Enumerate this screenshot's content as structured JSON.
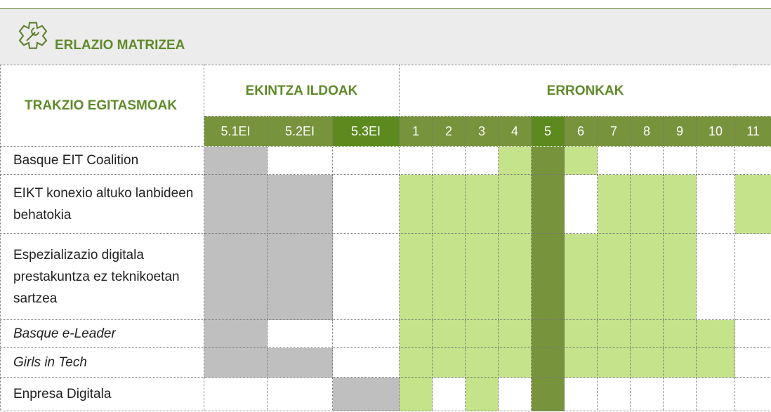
{
  "header": {
    "title": "ERLAZIO MATRIZEA"
  },
  "table": {
    "row_header": "TRAKZIO EGITASMOAK",
    "groups": [
      "EKINTZA ILDOAK",
      "ERRONKAK"
    ],
    "columns": [
      "5.1EI",
      "5.2EI",
      "5.3EI",
      "1",
      "2",
      "3",
      "4",
      "5",
      "6",
      "7",
      "8",
      "9",
      "10",
      "11"
    ],
    "highlight_columns": [
      "5.3EI",
      "5"
    ],
    "rows": [
      {
        "label": "Basque EIT Coalition",
        "italic": false,
        "cells": [
          "grey",
          "none",
          "none",
          "none",
          "none",
          "none",
          "light",
          "dark",
          "light",
          "none",
          "none",
          "none",
          "none",
          "none"
        ]
      },
      {
        "label": "EIKT konexio altuko lanbideen behatokia",
        "italic": false,
        "cells": [
          "grey",
          "grey",
          "none",
          "light",
          "light",
          "light",
          "light",
          "dark",
          "none",
          "light",
          "light",
          "light",
          "none",
          "light"
        ]
      },
      {
        "label": "Espezializazio digitala prestakuntza ez teknikoetan sartzea",
        "italic": false,
        "cells": [
          "grey",
          "grey",
          "none",
          "light",
          "light",
          "light",
          "light",
          "dark",
          "light",
          "light",
          "light",
          "light",
          "none",
          "none"
        ]
      },
      {
        "label": "Basque e-Leader",
        "italic": true,
        "cells": [
          "grey",
          "none",
          "none",
          "light",
          "light",
          "light",
          "light",
          "dark",
          "light",
          "light",
          "light",
          "light",
          "light",
          "none"
        ]
      },
      {
        "label": "Girls in Tech",
        "italic": true,
        "cells": [
          "grey",
          "grey",
          "none",
          "light",
          "light",
          "light",
          "light",
          "dark",
          "light",
          "light",
          "light",
          "light",
          "light",
          "none"
        ]
      },
      {
        "label": "Enpresa Digitala",
        "italic": false,
        "cells": [
          "none",
          "none",
          "grey",
          "light",
          "none",
          "light",
          "none",
          "dark",
          "none",
          "none",
          "none",
          "none",
          "none",
          "none"
        ]
      }
    ],
    "fills": {
      "grey": "#bfbfbf",
      "light": "#c4e38a",
      "dark": "#77933c",
      "none": "#ffffff"
    }
  }
}
